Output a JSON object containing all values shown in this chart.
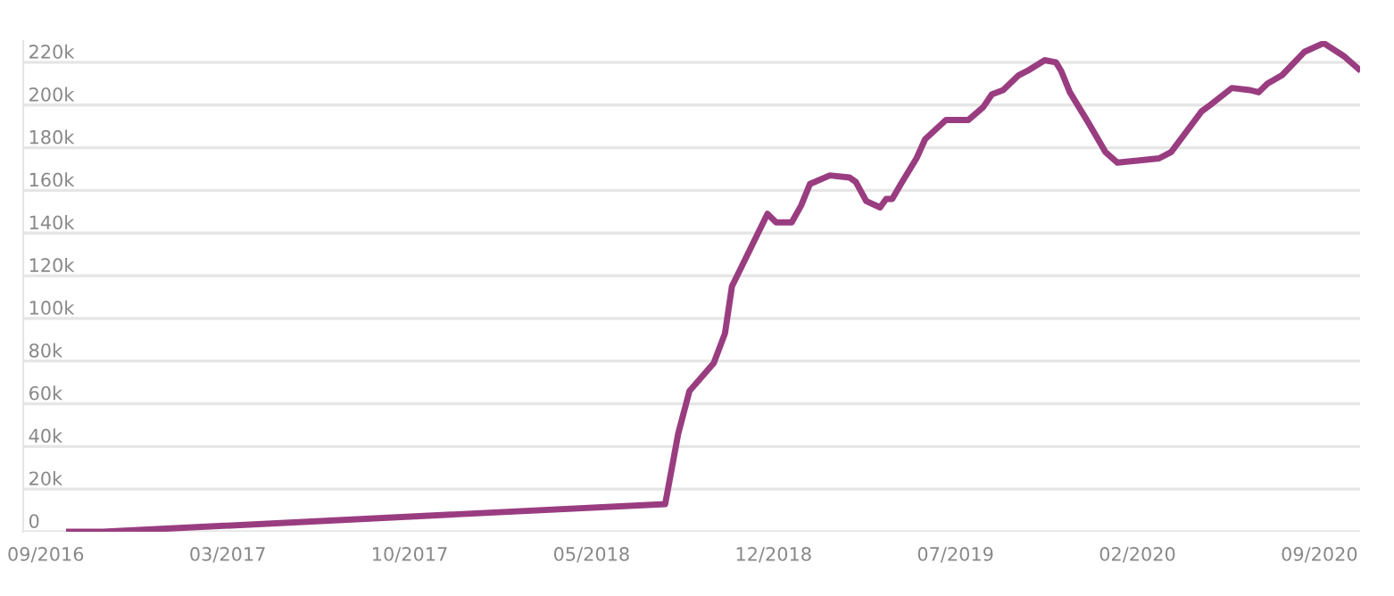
{
  "chart_data": {
    "type": "line",
    "x": [
      "2016-09-28",
      "2016-11-06",
      "2018-08-17",
      "2018-09-01",
      "2018-09-14",
      "2018-10-12",
      "2018-10-25",
      "2018-11-02",
      "2018-12-13",
      "2018-12-23",
      "2019-01-10",
      "2019-01-21",
      "2019-01-31",
      "2019-02-23",
      "2019-03-18",
      "2019-03-25",
      "2019-04-06",
      "2019-04-22",
      "2019-04-29",
      "2019-05-06",
      "2019-05-16",
      "2019-06-03",
      "2019-06-13",
      "2019-07-07",
      "2019-08-02",
      "2019-08-19",
      "2019-08-29",
      "2019-09-11",
      "2019-09-29",
      "2019-10-09",
      "2019-10-29",
      "2019-11-11",
      "2019-11-17",
      "2019-11-27",
      "2019-12-18",
      "2020-01-07",
      "2020-01-21",
      "2020-03-09",
      "2020-03-23",
      "2020-04-27",
      "2020-05-07",
      "2020-06-01",
      "2020-06-22",
      "2020-07-02",
      "2020-07-12",
      "2020-07-29",
      "2020-08-24",
      "2020-09-15",
      "2020-10-08",
      "2020-10-25"
    ],
    "series": [
      {
        "color": "#993d80",
        "values": [
          0,
          0,
          13000,
          46000,
          66000,
          79000,
          93000,
          115000,
          149000,
          145000,
          145000,
          153000,
          163000,
          167000,
          166000,
          164000,
          155000,
          152000,
          156000,
          156000,
          163000,
          175000,
          184000,
          193000,
          193000,
          199000,
          205000,
          207000,
          214000,
          216000,
          221000,
          220000,
          216000,
          206000,
          192000,
          178000,
          173000,
          175000,
          178000,
          197000,
          200000,
          208000,
          207000,
          206000,
          210000,
          214000,
          225000,
          229000,
          223000,
          217000
        ]
      }
    ],
    "xlim": [
      "2016-08-06",
      "2020-10-27"
    ],
    "xticks": [
      {
        "value": "2016-09-01",
        "label": "09/2016"
      },
      {
        "value": "2017-03-30",
        "label": "03/2017"
      },
      {
        "value": "2017-10-26",
        "label": "10/2017"
      },
      {
        "value": "2018-05-24",
        "label": "05/2018"
      },
      {
        "value": "2018-12-20",
        "label": "12/2018"
      },
      {
        "value": "2019-07-18",
        "label": "07/2019"
      },
      {
        "value": "2020-02-13",
        "label": "02/2020"
      },
      {
        "value": "2020-09-10",
        "label": "09/2020"
      }
    ],
    "ylim": [
      0,
      230000
    ],
    "yticks": [
      {
        "value": 0,
        "label": "0"
      },
      {
        "value": 20000,
        "label": "20k"
      },
      {
        "value": 40000,
        "label": "40k"
      },
      {
        "value": 60000,
        "label": "60k"
      },
      {
        "value": 80000,
        "label": "80k"
      },
      {
        "value": 100000,
        "label": "100k"
      },
      {
        "value": 120000,
        "label": "120k"
      },
      {
        "value": 140000,
        "label": "140k"
      },
      {
        "value": 160000,
        "label": "160k"
      },
      {
        "value": 180000,
        "label": "180k"
      },
      {
        "value": 200000,
        "label": "200k"
      },
      {
        "value": 220000,
        "label": "220k"
      }
    ],
    "grid": "y",
    "legend": false,
    "marker": "none",
    "line_style": "solid"
  }
}
